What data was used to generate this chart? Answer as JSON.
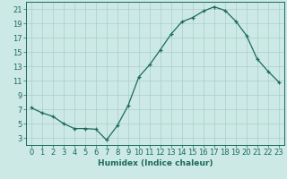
{
  "x": [
    0,
    1,
    2,
    3,
    4,
    5,
    6,
    7,
    8,
    9,
    10,
    11,
    12,
    13,
    14,
    15,
    16,
    17,
    18,
    19,
    20,
    21,
    22,
    23
  ],
  "y": [
    7.2,
    6.5,
    6.0,
    5.0,
    4.3,
    4.3,
    4.2,
    2.7,
    4.7,
    7.5,
    11.5,
    13.2,
    15.3,
    17.5,
    19.2,
    19.8,
    20.7,
    21.3,
    20.8,
    19.3,
    17.3,
    14.0,
    12.3,
    10.8
  ],
  "line_color": "#1a6b5a",
  "marker": "+",
  "marker_size": 3,
  "bg_color": "#cce9e5",
  "grid_color": "#aacfcb",
  "xlabel": "Humidex (Indice chaleur)",
  "xlim": [
    -0.5,
    23.5
  ],
  "ylim": [
    2,
    22
  ],
  "yticks": [
    3,
    5,
    7,
    9,
    11,
    13,
    15,
    17,
    19,
    21
  ],
  "xticks": [
    0,
    1,
    2,
    3,
    4,
    5,
    6,
    7,
    8,
    9,
    10,
    11,
    12,
    13,
    14,
    15,
    16,
    17,
    18,
    19,
    20,
    21,
    22,
    23
  ],
  "tick_color": "#1a6b5a",
  "label_color": "#1a6b5a",
  "xlabel_fontsize": 6.5,
  "tick_fontsize": 6.0
}
